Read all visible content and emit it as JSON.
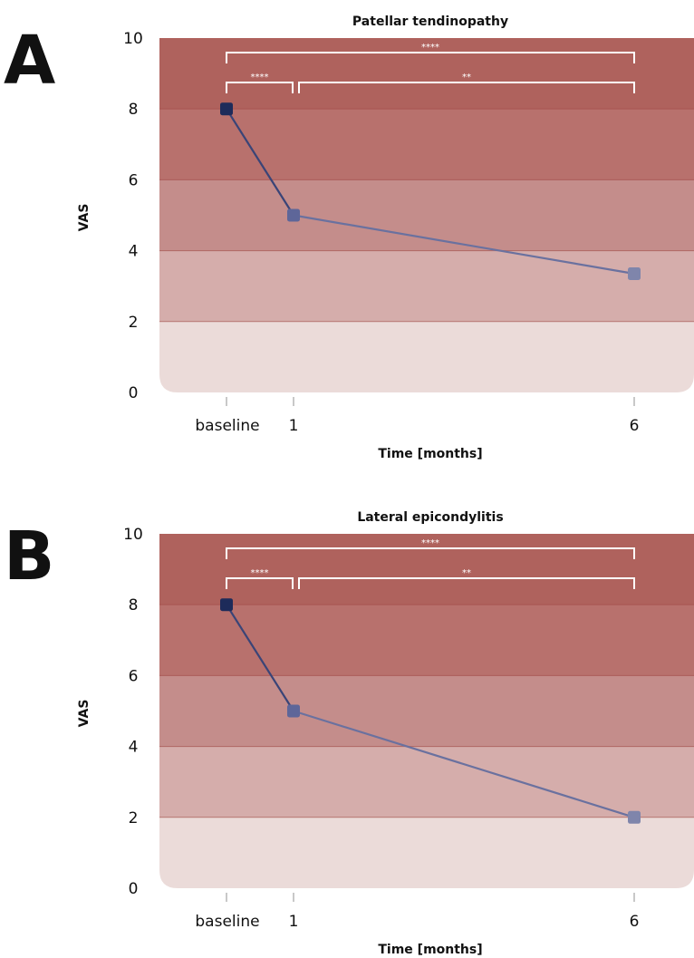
{
  "colors": {
    "band_0_2": "#ebdbd9",
    "band_2_4": "#d5adab",
    "band_4_6": "#c48d8b",
    "band_6_8": "#b8716d",
    "band_8_10": "#af625d",
    "band_line": "#9c403c",
    "bracket": "#ffffff",
    "marker_dark": "#1d2b5a",
    "marker_mid": "#5e6699",
    "marker_light": "#7f85ab",
    "line": "#4a5285"
  },
  "chart_data": [
    {
      "panel_letter": "A",
      "type": "line",
      "title": "Patellar tendinopathy",
      "xlabel": "Time [months]",
      "ylabel": "VAS",
      "x_categories": [
        "baseline",
        "1",
        "6"
      ],
      "x_months": [
        0,
        1,
        6
      ],
      "values": [
        8,
        5,
        3.35
      ],
      "ylim": [
        0,
        10
      ],
      "yticks": [
        0,
        2,
        4,
        6,
        8,
        10
      ],
      "grid": false,
      "significance": [
        {
          "from": "baseline",
          "to": "6",
          "label": "****"
        },
        {
          "from": "baseline",
          "to": "1",
          "label": "****"
        },
        {
          "from": "1",
          "to": "6",
          "label": "**"
        }
      ]
    },
    {
      "panel_letter": "B",
      "type": "line",
      "title": "Lateral epicondylitis",
      "xlabel": "Time [months]",
      "ylabel": "VAS",
      "x_categories": [
        "baseline",
        "1",
        "6"
      ],
      "x_months": [
        0,
        1,
        6
      ],
      "values": [
        8,
        5,
        2
      ],
      "ylim": [
        0,
        10
      ],
      "yticks": [
        0,
        2,
        4,
        6,
        8,
        10
      ],
      "grid": false,
      "significance": [
        {
          "from": "baseline",
          "to": "6",
          "label": "****"
        },
        {
          "from": "baseline",
          "to": "1",
          "label": "****"
        },
        {
          "from": "1",
          "to": "6",
          "label": "**"
        }
      ]
    }
  ]
}
